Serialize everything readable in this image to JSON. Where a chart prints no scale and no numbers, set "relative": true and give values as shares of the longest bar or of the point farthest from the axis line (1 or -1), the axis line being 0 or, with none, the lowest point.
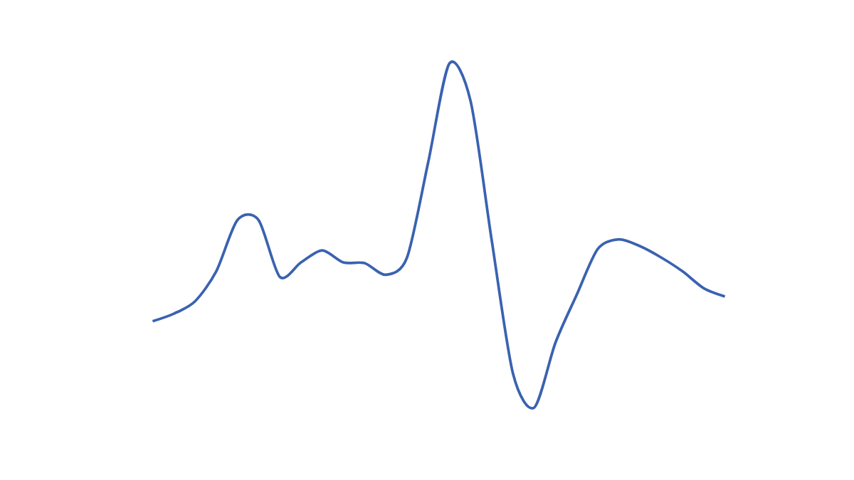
{
  "chart_data": {
    "type": "line",
    "relative": true,
    "color": "#3a62b0",
    "categories": [
      null,
      null,
      null,
      null,
      null,
      null,
      null,
      null,
      null,
      null,
      null,
      null,
      null,
      null,
      null,
      null,
      null,
      null,
      null,
      null,
      null,
      null,
      null,
      null,
      null,
      null,
      null,
      null
    ],
    "values": [
      0.251,
      0.273,
      0.309,
      0.396,
      0.545,
      0.545,
      0.38,
      0.422,
      0.457,
      0.422,
      0.42,
      0.386,
      0.436,
      0.713,
      1,
      0.891,
      0.485,
      0.099,
      0,
      0.188,
      0.327,
      0.461,
      0.489,
      0.469,
      0.436,
      0.396,
      0.347,
      0.323
    ]
  }
}
